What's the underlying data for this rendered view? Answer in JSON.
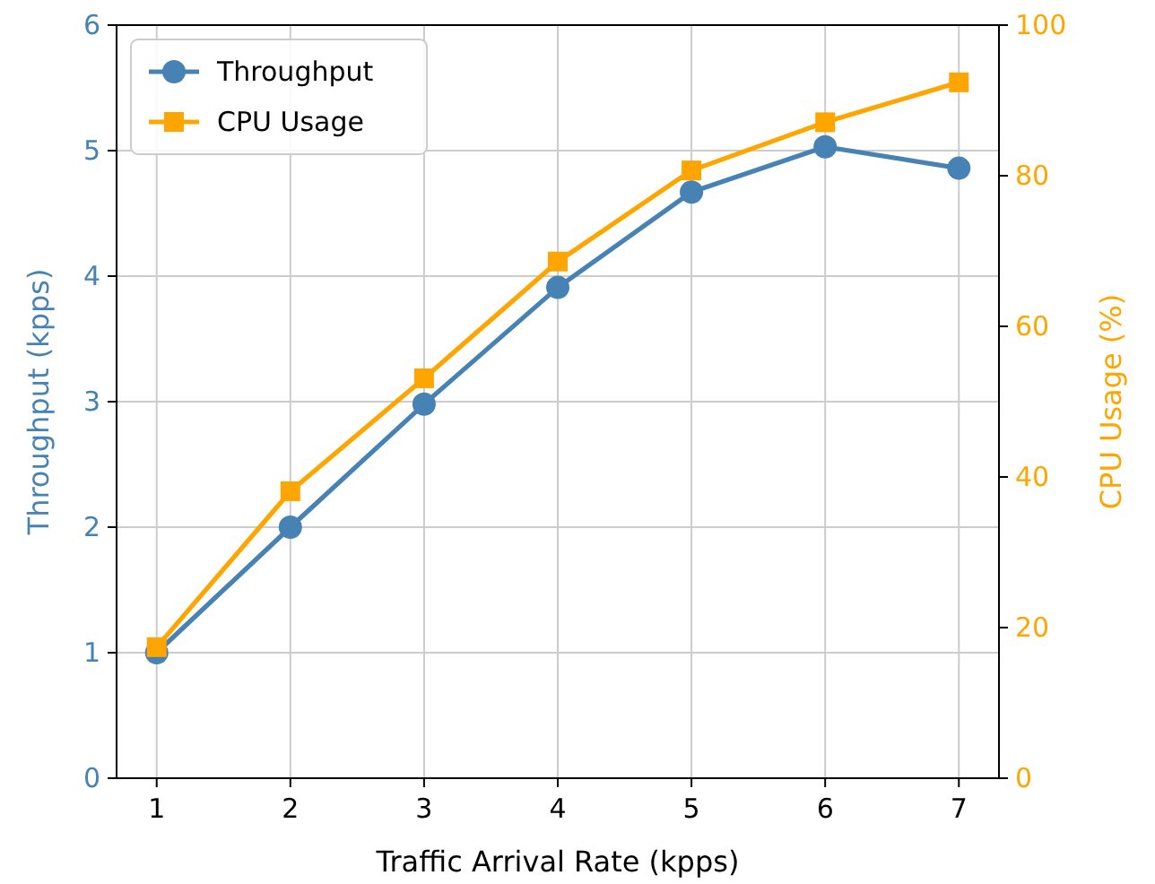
{
  "chart_data": {
    "type": "line",
    "xlabel": "Traffic Arrival Rate (kpps)",
    "ylabel": "Throughput (kpps)",
    "y2label": "CPU Usage (%)",
    "x": [
      1,
      2,
      3,
      4,
      5,
      6,
      7
    ],
    "series": [
      {
        "name": "Throughput",
        "color": "#4682b4",
        "marker": "circle",
        "values": [
          1.0,
          2.0,
          2.98,
          3.91,
          4.67,
          5.03,
          4.86
        ]
      },
      {
        "name": "CPU Usage",
        "color": "#ffa500",
        "marker": "square",
        "axis": "y2",
        "values": [
          17.4,
          38.1,
          53.1,
          68.6,
          80.7,
          87.1,
          92.4
        ]
      }
    ],
    "xlim": [
      0.7,
      7.3
    ],
    "xticks": [
      1,
      2,
      3,
      4,
      5,
      6,
      7
    ],
    "ylim": [
      0,
      6
    ],
    "yticks": [
      0,
      1,
      2,
      3,
      4,
      5,
      6
    ],
    "y2lim": [
      0,
      100
    ],
    "y2ticks": [
      0,
      20,
      40,
      60,
      80,
      100
    ],
    "grid": true,
    "legend": "top left",
    "line_style": "solid"
  }
}
